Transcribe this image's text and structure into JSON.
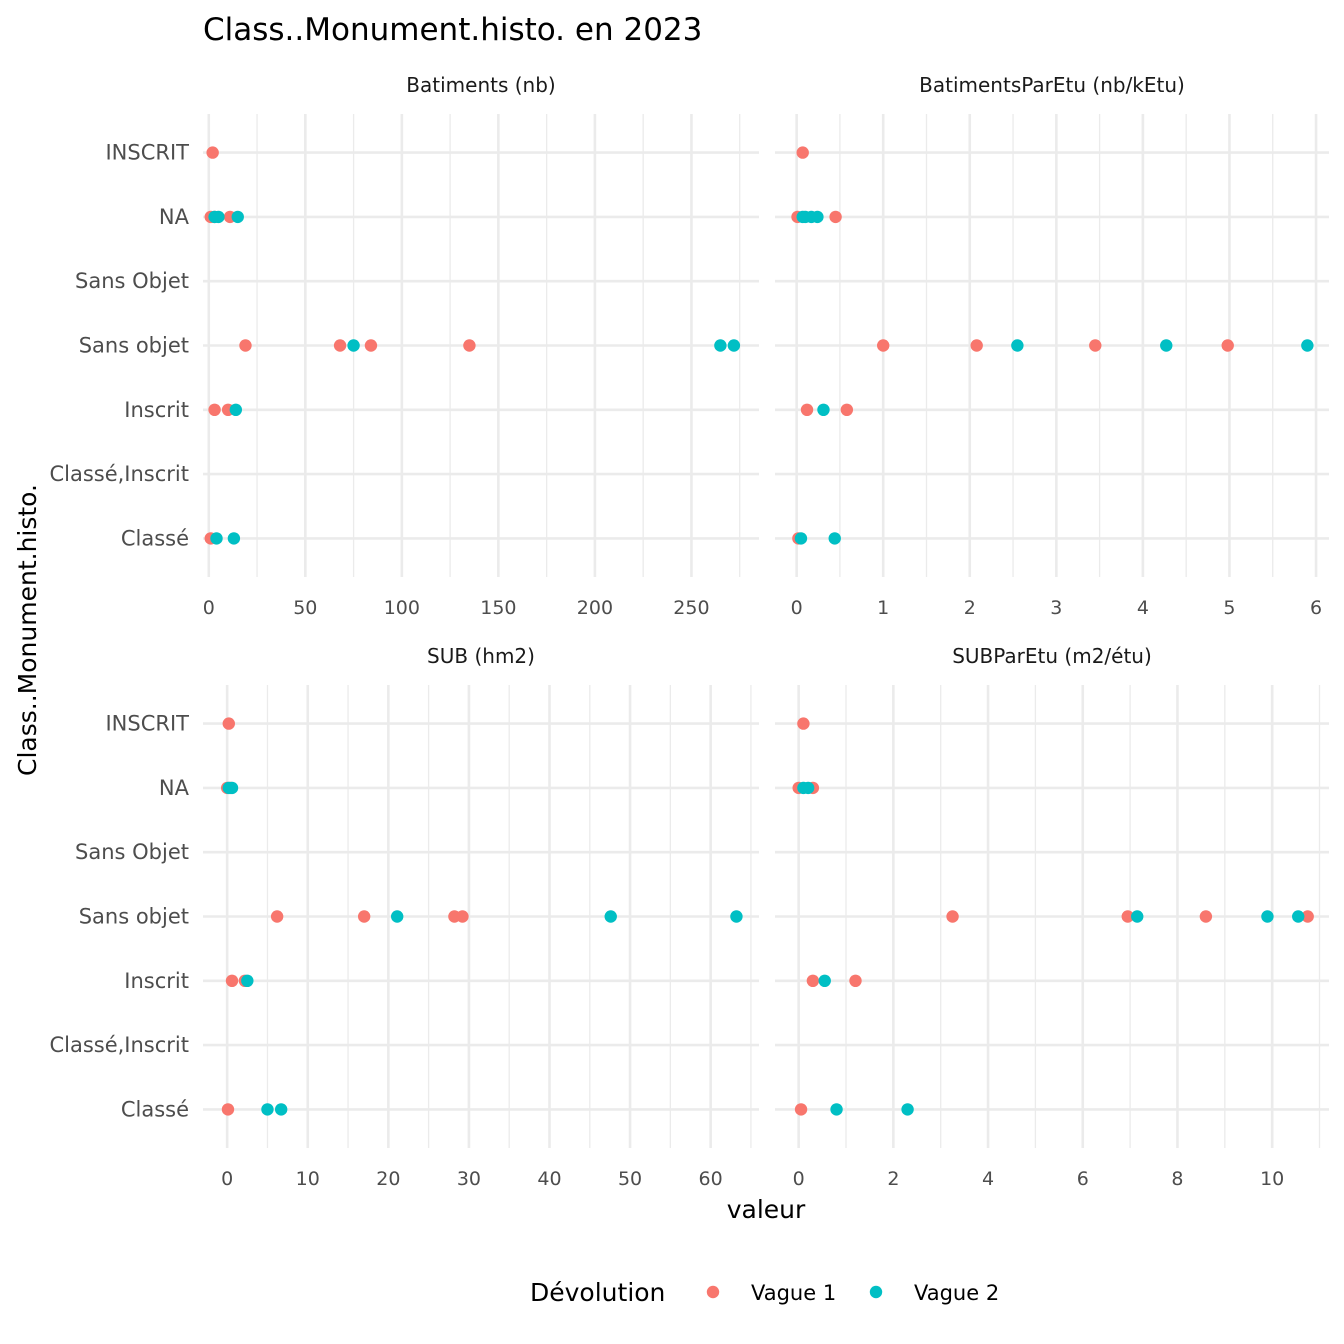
{
  "title": "Class..Monument.histo. en 2023",
  "chart_data": {
    "type": "scatter",
    "title": "Class..Monument.histo. en 2023",
    "xlabel": "valeur",
    "ylabel": "Class..Monument.histo.",
    "categories": [
      "Classé",
      "Classé,Inscrit",
      "Inscrit",
      "Sans objet",
      "Sans Objet",
      "NA",
      "INSCRIT"
    ],
    "legend": {
      "title": "Dévolution",
      "position": "bottom",
      "entries": [
        {
          "name": "Vague 1",
          "color": "#F8766D"
        },
        {
          "name": "Vague 2",
          "color": "#00BFC4"
        }
      ]
    },
    "grid": true,
    "panels": [
      {
        "name": "Batiments (nb)",
        "xlim": [
          -3,
          285
        ],
        "xticks": [
          0,
          50,
          100,
          150,
          200,
          250
        ],
        "series": [
          {
            "name": "Vague 1",
            "points": [
              {
                "y": "INSCRIT",
                "x": 2
              },
              {
                "y": "NA",
                "x": 1
              },
              {
                "y": "NA",
                "x": 3
              },
              {
                "y": "NA",
                "x": 11
              },
              {
                "y": "Sans objet",
                "x": 19
              },
              {
                "y": "Sans objet",
                "x": 68
              },
              {
                "y": "Sans objet",
                "x": 84
              },
              {
                "y": "Sans objet",
                "x": 135
              },
              {
                "y": "Inscrit",
                "x": 3
              },
              {
                "y": "Inscrit",
                "x": 10
              },
              {
                "y": "Classé",
                "x": 1
              }
            ]
          },
          {
            "name": "Vague 2",
            "points": [
              {
                "y": "NA",
                "x": 3
              },
              {
                "y": "NA",
                "x": 5
              },
              {
                "y": "NA",
                "x": 15
              },
              {
                "y": "Sans objet",
                "x": 75
              },
              {
                "y": "Sans objet",
                "x": 265
              },
              {
                "y": "Sans objet",
                "x": 272
              },
              {
                "y": "Inscrit",
                "x": 14
              },
              {
                "y": "Classé",
                "x": 4
              },
              {
                "y": "Classé",
                "x": 13
              }
            ]
          }
        ]
      },
      {
        "name": "BatimentsParEtu (nb/kEtu)",
        "xlim": [
          -0.25,
          6.15
        ],
        "xticks": [
          0,
          1,
          2,
          3,
          4,
          5,
          6
        ],
        "series": [
          {
            "name": "Vague 1",
            "points": [
              {
                "y": "INSCRIT",
                "x": 0.07
              },
              {
                "y": "NA",
                "x": 0.01
              },
              {
                "y": "NA",
                "x": 0.45
              },
              {
                "y": "Sans objet",
                "x": 1.0
              },
              {
                "y": "Sans objet",
                "x": 2.08
              },
              {
                "y": "Sans objet",
                "x": 3.45
              },
              {
                "y": "Sans objet",
                "x": 4.98
              },
              {
                "y": "Inscrit",
                "x": 0.12
              },
              {
                "y": "Inscrit",
                "x": 0.58
              },
              {
                "y": "Classé",
                "x": 0.02
              }
            ]
          },
          {
            "name": "Vague 2",
            "points": [
              {
                "y": "NA",
                "x": 0.07
              },
              {
                "y": "NA",
                "x": 0.1
              },
              {
                "y": "NA",
                "x": 0.17
              },
              {
                "y": "NA",
                "x": 0.24
              },
              {
                "y": "Sans objet",
                "x": 2.55
              },
              {
                "y": "Sans objet",
                "x": 4.27
              },
              {
                "y": "Sans objet",
                "x": 5.9
              },
              {
                "y": "Inscrit",
                "x": 0.31
              },
              {
                "y": "Classé",
                "x": 0.05
              },
              {
                "y": "Classé",
                "x": 0.44
              }
            ]
          }
        ]
      },
      {
        "name": "SUB (hm2)",
        "xlim": [
          -3,
          66
        ],
        "xticks": [
          0,
          10,
          20,
          30,
          40,
          50,
          60
        ],
        "series": [
          {
            "name": "Vague 1",
            "points": [
              {
                "y": "INSCRIT",
                "x": 0.2
              },
              {
                "y": "NA",
                "x": 0.0
              },
              {
                "y": "NA",
                "x": 0.4
              },
              {
                "y": "Sans objet",
                "x": 6.2
              },
              {
                "y": "Sans objet",
                "x": 17.0
              },
              {
                "y": "Sans objet",
                "x": 28.2
              },
              {
                "y": "Sans objet",
                "x": 29.2
              },
              {
                "y": "Inscrit",
                "x": 0.6
              },
              {
                "y": "Inscrit",
                "x": 2.2
              },
              {
                "y": "Classé",
                "x": 0.1
              }
            ]
          },
          {
            "name": "Vague 2",
            "points": [
              {
                "y": "NA",
                "x": 0.2
              },
              {
                "y": "NA",
                "x": 0.6
              },
              {
                "y": "Sans objet",
                "x": 21.1
              },
              {
                "y": "Sans objet",
                "x": 47.6
              },
              {
                "y": "Sans objet",
                "x": 63.2
              },
              {
                "y": "Inscrit",
                "x": 2.5
              },
              {
                "y": "Classé",
                "x": 5.0
              },
              {
                "y": "Classé",
                "x": 6.7
              }
            ]
          }
        ]
      },
      {
        "name": "SUBParEtu (m2/étu)",
        "xlim": [
          -0.5,
          11.2
        ],
        "xticks": [
          0,
          2,
          4,
          6,
          8,
          10
        ],
        "series": [
          {
            "name": "Vague 1",
            "points": [
              {
                "y": "INSCRIT",
                "x": 0.1
              },
              {
                "y": "NA",
                "x": 0.0
              },
              {
                "y": "NA",
                "x": 0.3
              },
              {
                "y": "Sans objet",
                "x": 3.25
              },
              {
                "y": "Sans objet",
                "x": 6.95
              },
              {
                "y": "Sans objet",
                "x": 8.6
              },
              {
                "y": "Sans objet",
                "x": 10.75
              },
              {
                "y": "Inscrit",
                "x": 0.3
              },
              {
                "y": "Inscrit",
                "x": 1.2
              },
              {
                "y": "Classé",
                "x": 0.05
              }
            ]
          },
          {
            "name": "Vague 2",
            "points": [
              {
                "y": "NA",
                "x": 0.1
              },
              {
                "y": "NA",
                "x": 0.2
              },
              {
                "y": "Sans objet",
                "x": 7.15
              },
              {
                "y": "Sans objet",
                "x": 9.9
              },
              {
                "y": "Sans objet",
                "x": 10.55
              },
              {
                "y": "Inscrit",
                "x": 0.55
              },
              {
                "y": "Classé",
                "x": 0.8
              },
              {
                "y": "Classé",
                "x": 2.3
              }
            ]
          }
        ]
      }
    ]
  }
}
